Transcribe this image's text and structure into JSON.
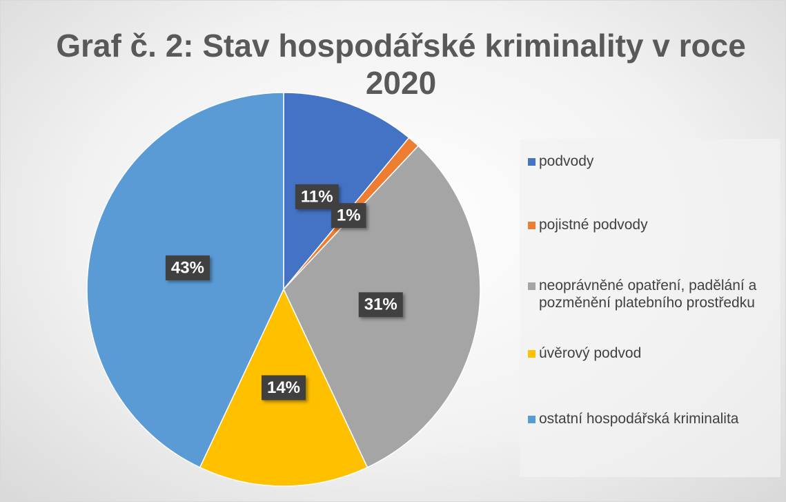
{
  "chart_data": {
    "type": "pie",
    "title": "Graf č. 2: Stav hospodářské kriminality v roce 2020",
    "categories": [
      "podvody",
      "pojistné podvody",
      "neoprávněné opatření, padělání a pozměnění platebního prostředku",
      "úvěrový podvod",
      "ostatní hospodářská kriminalita"
    ],
    "values": [
      11,
      1,
      31,
      14,
      43
    ],
    "value_labels": [
      "11%",
      "1%",
      "31%",
      "14%",
      "43%"
    ],
    "colors": [
      "#4472c4",
      "#ed7d31",
      "#a5a5a5",
      "#ffc000",
      "#5b9bd5"
    ],
    "legend": "right"
  }
}
